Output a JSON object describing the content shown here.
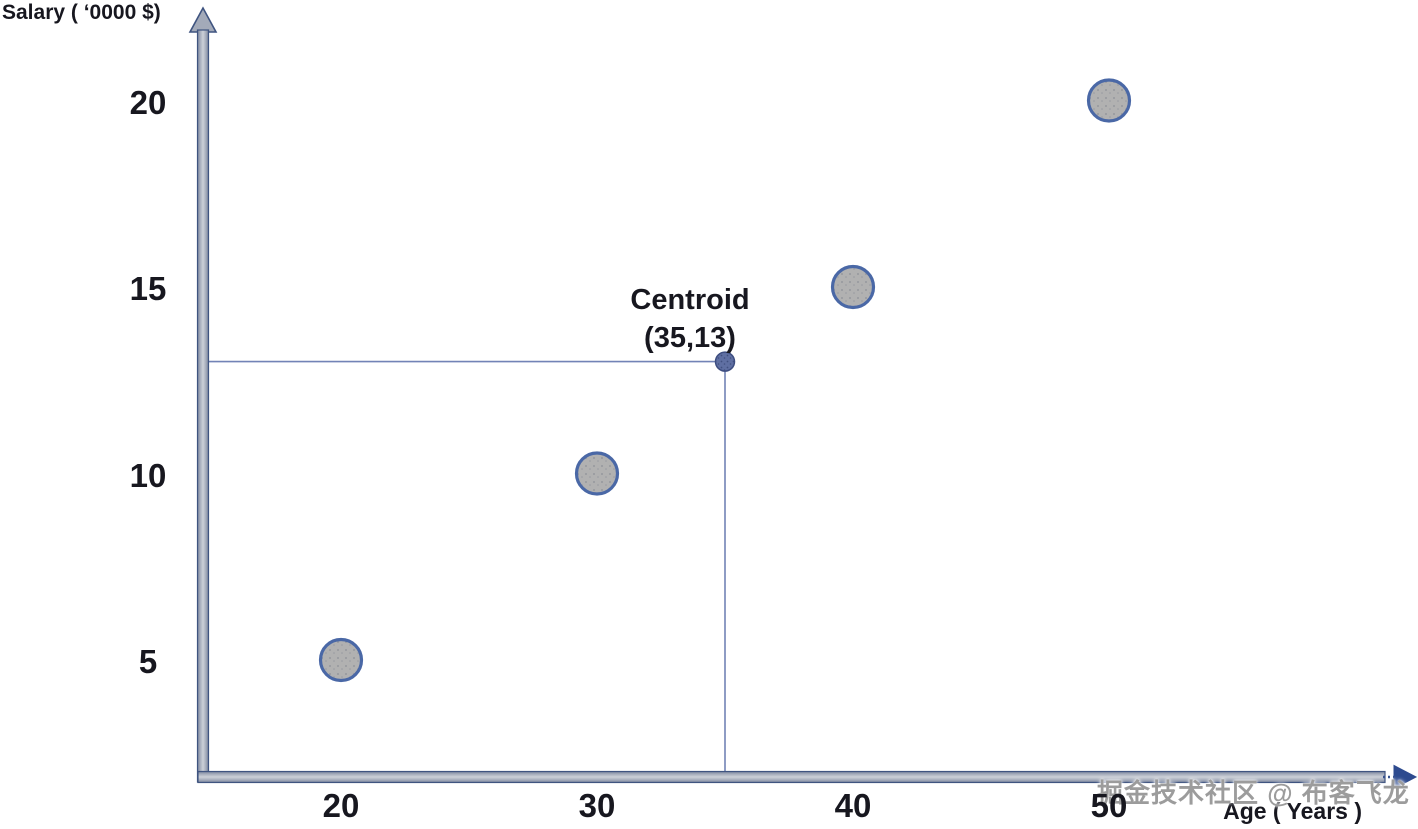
{
  "watermark": "掘金技术社区 @ 布客飞龙",
  "chart_data": {
    "type": "scatter",
    "title": "",
    "xlabel": "Age ( Years )",
    "ylabel": "Salary ( ‘0000 $)",
    "x_ticks": [
      20,
      30,
      40,
      50
    ],
    "y_ticks": [
      5,
      10,
      15,
      20
    ],
    "xlim": [
      15,
      61
    ],
    "ylim": [
      2,
      22
    ],
    "grid": false,
    "legend": "none",
    "points": [
      {
        "x": 20,
        "y": 5
      },
      {
        "x": 30,
        "y": 10
      },
      {
        "x": 40,
        "y": 15
      },
      {
        "x": 50,
        "y": 20
      }
    ],
    "centroid": {
      "x": 35,
      "y": 13,
      "label": "Centroid",
      "coords_label": "(35,13)"
    },
    "colors": {
      "point_fill": "#b1b1b1",
      "point_stroke": "#4a68a6",
      "centroid_fill": "#5f6fa2",
      "centroid_stroke": "#3d4d80",
      "guide_line": "#7283b6",
      "axis_outline": "#3f5480",
      "axis_fill": "#a3aab9",
      "text": "#17171f",
      "watermark_text": "#9c9c9c"
    }
  }
}
